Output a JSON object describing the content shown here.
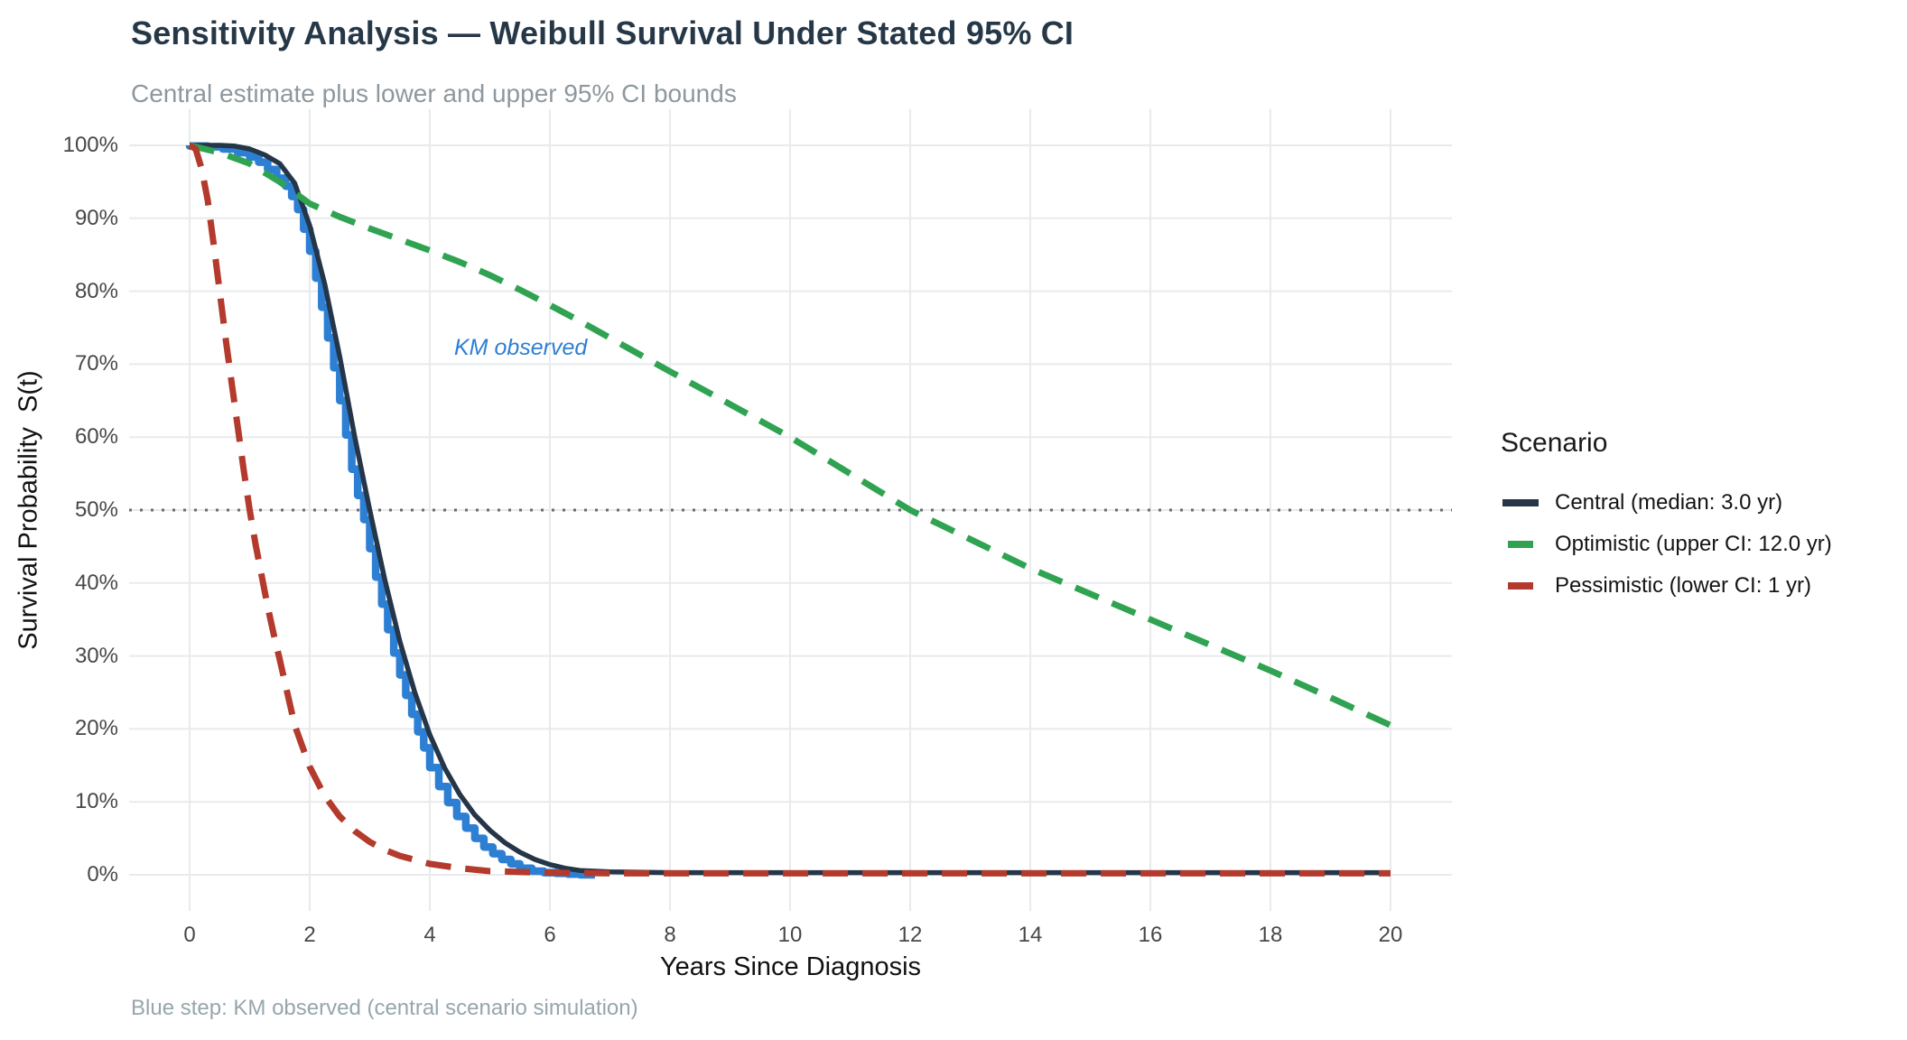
{
  "title": "Sensitivity Analysis — Weibull Survival Under Stated 95% CI",
  "subtitle": "Central estimate plus lower and upper 95% CI bounds",
  "caption": "Blue step: KM observed (central scenario simulation)",
  "annotation": {
    "text": "KM observed"
  },
  "axes": {
    "x": {
      "title": "Years Since Diagnosis",
      "ticks": [
        "0",
        "2",
        "4",
        "6",
        "8",
        "10",
        "12",
        "14",
        "16",
        "18",
        "20"
      ]
    },
    "y": {
      "title": "Survival Probability  S(t)",
      "ticks": [
        "100%",
        "90%",
        "80%",
        "70%",
        "60%",
        "50%",
        "40%",
        "30%",
        "20%",
        "10%",
        "0%"
      ]
    }
  },
  "legend": {
    "title": "Scenario",
    "items": [
      {
        "label": "Central (median: 3.0 yr)",
        "color": "#253649",
        "style": "solid"
      },
      {
        "label": "Optimistic (upper CI: 12.0 yr)",
        "color": "#2fa351",
        "style": "dashed"
      },
      {
        "label": "Pessimistic (lower CI: 1 yr)",
        "color": "#b33a2c",
        "style": "dashed"
      }
    ]
  },
  "colors": {
    "title": "#263848",
    "subtitle": "#8d989e",
    "caption": "#96a6ac",
    "grid": "#e8eaec",
    "reference_line": "#6a6a6a",
    "central": "#253649",
    "optimistic": "#2fa351",
    "pessimistic": "#b33a2c",
    "km": "#2d7fd4"
  },
  "chart_data": {
    "type": "line",
    "title": "Sensitivity Analysis — Weibull Survival Under Stated 95% CI",
    "xlabel": "Years Since Diagnosis",
    "ylabel": "Survival Probability S(t)",
    "xlim": [
      0,
      20
    ],
    "ylim": [
      0,
      1
    ],
    "x_ticks": [
      0,
      2,
      4,
      6,
      8,
      10,
      12,
      14,
      16,
      18,
      20
    ],
    "y_ticks": [
      0,
      0.1,
      0.2,
      0.3,
      0.4,
      0.5,
      0.6,
      0.7,
      0.8,
      0.9,
      1.0
    ],
    "grid": true,
    "legend_position": "right",
    "reference_line_y": 0.5,
    "series": [
      {
        "name": "KM observed",
        "style": "step",
        "color": "#2d7fd4",
        "width": 8.5,
        "points": [
          [
            0,
            1.0
          ],
          [
            0.3,
            0.999
          ],
          [
            0.55,
            0.998
          ],
          [
            0.8,
            0.995
          ],
          [
            1.0,
            0.99
          ],
          [
            1.15,
            0.984
          ],
          [
            1.3,
            0.977
          ],
          [
            1.45,
            0.967
          ],
          [
            1.6,
            0.955
          ],
          [
            1.7,
            0.944
          ],
          [
            1.8,
            0.93
          ],
          [
            1.9,
            0.912
          ],
          [
            2.0,
            0.885
          ],
          [
            2.1,
            0.855
          ],
          [
            2.2,
            0.818
          ],
          [
            2.3,
            0.778
          ],
          [
            2.4,
            0.736
          ],
          [
            2.5,
            0.695
          ],
          [
            2.6,
            0.65
          ],
          [
            2.7,
            0.603
          ],
          [
            2.8,
            0.556
          ],
          [
            2.9,
            0.52
          ],
          [
            3.0,
            0.487
          ],
          [
            3.1,
            0.447
          ],
          [
            3.2,
            0.408
          ],
          [
            3.3,
            0.371
          ],
          [
            3.4,
            0.336
          ],
          [
            3.5,
            0.304
          ],
          [
            3.6,
            0.274
          ],
          [
            3.7,
            0.246
          ],
          [
            3.8,
            0.22
          ],
          [
            3.9,
            0.196
          ],
          [
            4.0,
            0.174
          ],
          [
            4.15,
            0.147
          ],
          [
            4.3,
            0.121
          ],
          [
            4.45,
            0.099
          ],
          [
            4.6,
            0.08
          ],
          [
            4.75,
            0.064
          ],
          [
            4.9,
            0.05
          ],
          [
            5.05,
            0.038
          ],
          [
            5.2,
            0.029
          ],
          [
            5.35,
            0.021
          ],
          [
            5.5,
            0.015
          ],
          [
            5.7,
            0.009
          ],
          [
            5.9,
            0.005
          ],
          [
            6.1,
            0.003
          ],
          [
            6.3,
            0.002
          ],
          [
            6.5,
            0.001
          ],
          [
            6.75,
            0.0
          ]
        ]
      },
      {
        "name": "Central (median: 3.0 yr)",
        "style": "solid",
        "color": "#253649",
        "width": 5.5,
        "points": [
          [
            0,
            1.0
          ],
          [
            0.5,
            1.0
          ],
          [
            0.75,
            0.999
          ],
          [
            1,
            0.995
          ],
          [
            1.25,
            0.987
          ],
          [
            1.5,
            0.975
          ],
          [
            1.75,
            0.948
          ],
          [
            2,
            0.89
          ],
          [
            2.25,
            0.81
          ],
          [
            2.5,
            0.71
          ],
          [
            2.75,
            0.6
          ],
          [
            3,
            0.5
          ],
          [
            3.25,
            0.405
          ],
          [
            3.5,
            0.32
          ],
          [
            3.75,
            0.25
          ],
          [
            4,
            0.192
          ],
          [
            4.25,
            0.146
          ],
          [
            4.5,
            0.11
          ],
          [
            4.75,
            0.082
          ],
          [
            5,
            0.061
          ],
          [
            5.25,
            0.044
          ],
          [
            5.5,
            0.031
          ],
          [
            5.75,
            0.021
          ],
          [
            6,
            0.014
          ],
          [
            6.25,
            0.009
          ],
          [
            6.5,
            0.006
          ],
          [
            7,
            0.004
          ],
          [
            8,
            0.003
          ],
          [
            20,
            0.003
          ]
        ]
      },
      {
        "name": "Optimistic (upper CI: 12.0 yr)",
        "style": "dashed",
        "color": "#2fa351",
        "width": 7,
        "points": [
          [
            0,
            1.0
          ],
          [
            0.5,
            0.99
          ],
          [
            1,
            0.975
          ],
          [
            1.5,
            0.95
          ],
          [
            2,
            0.92
          ],
          [
            2.5,
            0.902
          ],
          [
            3,
            0.886
          ],
          [
            3.5,
            0.871
          ],
          [
            4,
            0.856
          ],
          [
            4.5,
            0.84
          ],
          [
            5,
            0.822
          ],
          [
            5.5,
            0.802
          ],
          [
            6,
            0.781
          ],
          [
            6.5,
            0.759
          ],
          [
            7,
            0.736
          ],
          [
            8,
            0.69
          ],
          [
            9,
            0.645
          ],
          [
            10,
            0.6
          ],
          [
            11,
            0.55
          ],
          [
            12,
            0.5
          ],
          [
            13,
            0.46
          ],
          [
            14,
            0.42
          ],
          [
            15,
            0.385
          ],
          [
            16,
            0.35
          ],
          [
            17,
            0.315
          ],
          [
            18,
            0.28
          ],
          [
            19,
            0.243
          ],
          [
            20,
            0.205
          ]
        ]
      },
      {
        "name": "Pessimistic (lower CI: 1 yr)",
        "style": "dashed",
        "color": "#b33a2c",
        "width": 7,
        "points": [
          [
            0,
            1.0
          ],
          [
            0.1,
            0.995
          ],
          [
            0.2,
            0.968
          ],
          [
            0.3,
            0.925
          ],
          [
            0.4,
            0.865
          ],
          [
            0.5,
            0.8
          ],
          [
            0.6,
            0.735
          ],
          [
            0.7,
            0.675
          ],
          [
            0.8,
            0.615
          ],
          [
            0.9,
            0.556
          ],
          [
            1,
            0.5
          ],
          [
            1.1,
            0.452
          ],
          [
            1.2,
            0.41
          ],
          [
            1.3,
            0.368
          ],
          [
            1.4,
            0.33
          ],
          [
            1.5,
            0.295
          ],
          [
            1.75,
            0.205
          ],
          [
            2,
            0.148
          ],
          [
            2.25,
            0.108
          ],
          [
            2.5,
            0.08
          ],
          [
            2.75,
            0.06
          ],
          [
            3,
            0.045
          ],
          [
            3.25,
            0.034
          ],
          [
            3.5,
            0.026
          ],
          [
            4,
            0.015
          ],
          [
            4.5,
            0.009
          ],
          [
            5,
            0.005
          ],
          [
            6,
            0.003
          ],
          [
            7,
            0.002
          ],
          [
            8,
            0.002
          ],
          [
            20,
            0.002
          ]
        ]
      }
    ]
  }
}
